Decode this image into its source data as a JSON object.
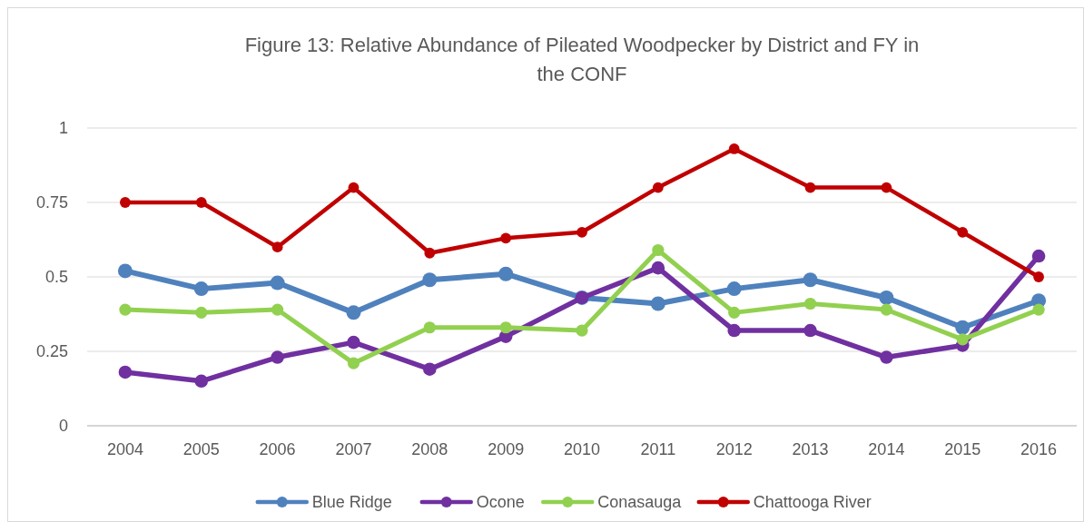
{
  "chart_data": {
    "type": "line",
    "title": "Figure 13: Relative Abundance of Pileated Woodpecker by District and FY in the CONF",
    "categories": [
      "2004",
      "2005",
      "2006",
      "2007",
      "2008",
      "2009",
      "2010",
      "2011",
      "2012",
      "2013",
      "2014",
      "2015",
      "2016"
    ],
    "series": [
      {
        "name": "Blue Ridge",
        "color": "#4f81bd",
        "values": [
          0.52,
          0.46,
          0.48,
          0.38,
          0.49,
          0.51,
          0.43,
          0.41,
          0.46,
          0.49,
          0.43,
          0.33,
          0.42
        ]
      },
      {
        "name": "Ocone",
        "color": "#7030a0",
        "values": [
          0.18,
          0.15,
          0.23,
          0.28,
          0.19,
          0.3,
          0.43,
          0.53,
          0.32,
          0.32,
          0.23,
          0.27,
          0.57
        ]
      },
      {
        "name": "Conasauga",
        "color": "#92d050",
        "values": [
          0.39,
          0.38,
          0.39,
          0.21,
          0.33,
          0.33,
          0.32,
          0.59,
          0.38,
          0.41,
          0.39,
          0.29,
          0.39
        ]
      },
      {
        "name": "Chattooga River",
        "color": "#c00000",
        "values": [
          0.75,
          0.75,
          0.6,
          0.8,
          0.58,
          0.63,
          0.65,
          0.8,
          0.93,
          0.8,
          0.8,
          0.65,
          0.5
        ]
      }
    ],
    "ylim": [
      0,
      1
    ],
    "yticks": [
      0,
      0.25,
      0.5,
      0.75,
      1
    ],
    "grid": "y",
    "legend": "bottom",
    "marker": "circle",
    "line_style": "solid"
  }
}
